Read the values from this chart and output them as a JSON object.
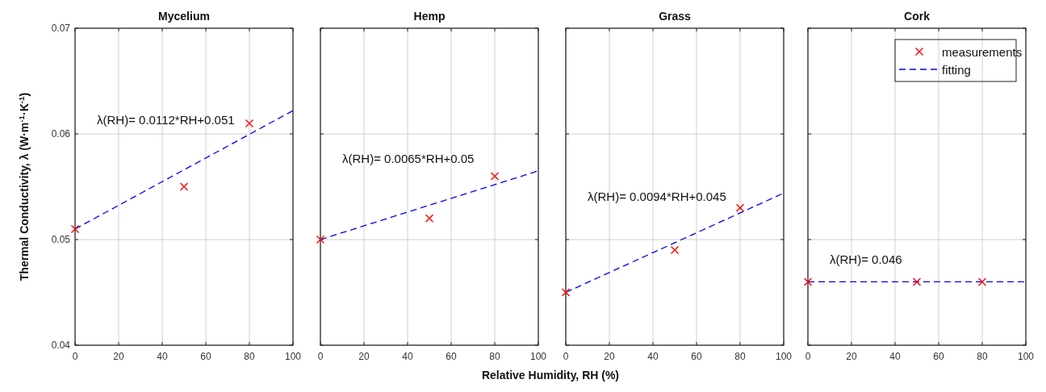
{
  "chart_data": [
    {
      "type": "scatter",
      "title": "Mycelium",
      "ylabel": "Thermal Conductivity, λ (W·m$^{-1}$·K$^{-1}$)",
      "xlim": [
        0,
        100
      ],
      "xticks": [
        0,
        20,
        40,
        60,
        80,
        100
      ],
      "ylim": [
        0.04,
        0.07
      ],
      "yticks": [
        0.04,
        0.05,
        0.06,
        0.07
      ],
      "grid": true,
      "series": [
        {
          "type": "scatter",
          "marker": "cross",
          "color": "#ff0000",
          "x": [
            0,
            50,
            80
          ],
          "values": [
            0.051,
            0.055,
            0.061
          ]
        },
        {
          "type": "line",
          "line_style": "dashed",
          "marker": "none",
          "color": "#0000ff",
          "x": [
            0,
            100
          ],
          "values": [
            0.051,
            0.0622
          ]
        }
      ],
      "annotations": [
        "λ(RH)= 0.0112*RH+0.051"
      ]
    },
    {
      "type": "scatter",
      "title": "Hemp",
      "xlabel": "Relative Humidity, RH (%)",
      "xlim": [
        0,
        100
      ],
      "xticks": [
        0,
        20,
        40,
        60,
        80,
        100
      ],
      "ylim": [
        0.04,
        0.07
      ],
      "yticks": [
        0.04,
        0.05,
        0.06,
        0.07
      ],
      "grid": true,
      "tick_labels": "x",
      "series": [
        {
          "type": "scatter",
          "marker": "cross",
          "color": "#ff0000",
          "x": [
            0,
            50,
            80
          ],
          "values": [
            0.05,
            0.052,
            0.056
          ]
        },
        {
          "type": "line",
          "line_style": "dashed",
          "marker": "none",
          "color": "#0000ff",
          "x": [
            0,
            100
          ],
          "values": [
            0.05,
            0.0565
          ]
        }
      ],
      "annotations": [
        "λ(RH)= 0.0065*RH+0.05"
      ]
    },
    {
      "type": "scatter",
      "title": "Grass",
      "xlim": [
        0,
        100
      ],
      "xticks": [
        0,
        20,
        40,
        60,
        80,
        100
      ],
      "ylim": [
        0.04,
        0.07
      ],
      "yticks": [
        0.04,
        0.05,
        0.06,
        0.07
      ],
      "grid": true,
      "tick_labels": "x",
      "series": [
        {
          "type": "scatter",
          "marker": "cross",
          "color": "#ff0000",
          "x": [
            0,
            50,
            80
          ],
          "values": [
            0.045,
            0.049,
            0.053
          ]
        },
        {
          "type": "line",
          "line_style": "dashed",
          "marker": "none",
          "color": "#0000ff",
          "x": [
            0,
            100
          ],
          "values": [
            0.045,
            0.0544
          ]
        }
      ],
      "annotations": [
        "λ(RH)= 0.0094*RH+0.045"
      ]
    },
    {
      "type": "scatter",
      "title": "Cork",
      "xlim": [
        0,
        100
      ],
      "xticks": [
        0,
        20,
        40,
        60,
        80,
        100
      ],
      "ylim": [
        0.04,
        0.07
      ],
      "yticks": [
        0.04,
        0.05,
        0.06,
        0.07
      ],
      "grid": true,
      "tick_labels": "x",
      "legend": "top right",
      "series": [
        {
          "type": "scatter",
          "name": "measurements",
          "marker": "cross",
          "color": "#ff0000",
          "x": [
            0,
            50,
            80
          ],
          "values": [
            0.046,
            0.046,
            0.046
          ]
        },
        {
          "type": "line",
          "name": "fitting",
          "line_style": "dashed",
          "marker": "none",
          "color": "#0000ff",
          "x": [
            0,
            100
          ],
          "values": [
            0.046,
            0.046
          ]
        }
      ],
      "annotations": [
        "λ(RH)= 0.046"
      ]
    }
  ]
}
